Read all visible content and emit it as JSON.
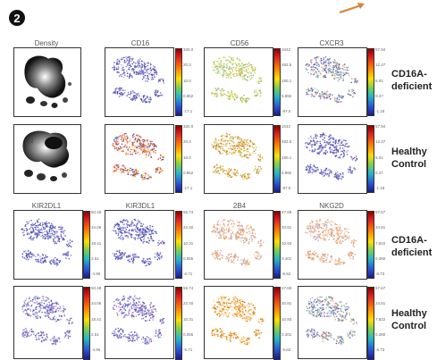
{
  "panel": {
    "number": "2"
  },
  "colors": {
    "badge": "#111111",
    "arrow": "#d9853a"
  },
  "top_block": {
    "density_title": "Density",
    "columns": [
      {
        "title": "CD16",
        "colormap": "jet"
      },
      {
        "title": "CD56",
        "colormap": "jet"
      },
      {
        "title": "CXCR3",
        "colormap": "jet"
      }
    ],
    "rows": [
      {
        "label_line1": "CD16A-",
        "label_line2": "deficient"
      },
      {
        "label_line1": "Healthy",
        "label_line2": "Control"
      }
    ]
  },
  "bottom_block": {
    "columns": [
      {
        "title": "KIR2DL1"
      },
      {
        "title": "KIR3DL1"
      },
      {
        "title": "2B4"
      },
      {
        "title": "NKG2D"
      }
    ],
    "rows": [
      {
        "label_line1": "CD16A-",
        "label_line2": "deficient"
      },
      {
        "label_line1": "Healthy",
        "label_line2": "Control"
      }
    ]
  },
  "colorbar_ticks": {
    "CD16": [
      "320.0",
      "20.3",
      "10.0",
      "0.862",
      "-17.1"
    ],
    "CD56": [
      "1042",
      "482.5",
      "180.1",
      "5.892",
      "-87.0"
    ],
    "CXCR3": [
      "57.94",
      "12.47",
      "5.01",
      "0.47",
      "-1.18"
    ],
    "KIR2DL1": [
      "50.48",
      "34.06",
      "18.41",
      "2.51",
      "-4.96"
    ],
    "KIR3DL1": [
      "55.74",
      "22.40",
      "10.31",
      "0.055",
      "-6.71"
    ],
    "2B4": [
      "47.69",
      "20.81",
      "10.93",
      "0.401",
      "-5.62"
    ],
    "NKG2D": [
      "57.67",
      "24.81",
      "7.822",
      "0.280",
      "-6.73"
    ]
  }
}
